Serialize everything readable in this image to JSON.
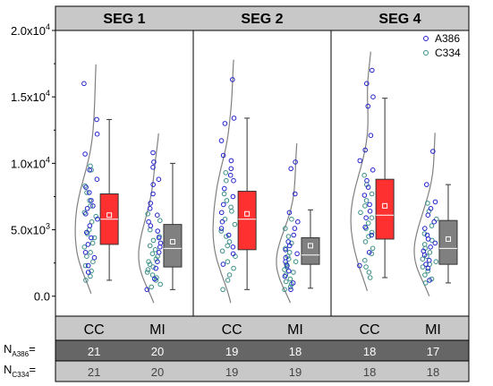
{
  "chart_data": {
    "type": "box",
    "y_axis": {
      "ylim": [
        -1500,
        20000
      ],
      "ticks": [
        {
          "value": 0,
          "label_base": "0.0",
          "label_exp": ""
        },
        {
          "value": 5000,
          "label_base": "5.0x10",
          "label_exp": "3"
        },
        {
          "value": 10000,
          "label_base": "1.0x10",
          "label_exp": "4"
        },
        {
          "value": 15000,
          "label_base": "1.5x10",
          "label_exp": "4"
        },
        {
          "value": 20000,
          "label_base": "2.0x10",
          "label_exp": "4"
        }
      ]
    },
    "legend": {
      "placement": "top-right",
      "entries": [
        {
          "name": "A386",
          "color": "#2222cc"
        },
        {
          "name": "C334",
          "color": "#3a8f86"
        }
      ]
    },
    "colors": {
      "cc_box": "#ff3030",
      "mi_box": "#808080",
      "header_bg": "#c8c8c8",
      "n_a_row": "#666666",
      "n_c_row": "#c8c8c8",
      "curve": "#808080",
      "a386": "#2222cc",
      "c334": "#3a8f86"
    },
    "panels": [
      {
        "title": "SEG 1",
        "groups": [
          {
            "category": "CC",
            "q1": 3900,
            "median": 5800,
            "q3": 7700,
            "mean": 6100,
            "whisker_low": 1200,
            "whisker_high": 13300,
            "a386": [
              16000,
              13300,
              12200,
              10700,
              9500,
              8800,
              8200,
              7800,
              7200,
              6800,
              6600,
              6200,
              5800,
              5300,
              4800,
              4400,
              3900,
              3300,
              2900,
              2300,
              1800
            ],
            "c334": [
              9800,
              9500,
              8300,
              7800,
              7200,
              6800,
              6300,
              6000,
              5600,
              5000,
              4700,
              4400,
              4000,
              3700,
              3300,
              3000,
              2600,
              2300,
              1900,
              1500,
              1200
            ]
          },
          {
            "category": "MI",
            "q1": 2200,
            "median": 3600,
            "q3": 5400,
            "mean": 4100,
            "whisker_low": 500,
            "whisker_high": 10000,
            "a386": [
              10800,
              10100,
              9700,
              8800,
              8400,
              7700,
              7000,
              6600,
              6100,
              5600,
              5300,
              4900,
              4400,
              4000,
              3700,
              3300,
              2600,
              2100,
              1300,
              500
            ],
            "c334": [
              6200,
              5700,
              5000,
              4500,
              4200,
              3800,
              3500,
              3200,
              3000,
              2800,
              2600,
              2400,
              2200,
              2000,
              1800,
              1600,
              1400,
              1200,
              900,
              700
            ]
          }
        ]
      },
      {
        "title": "SEG 2",
        "groups": [
          {
            "category": "CC",
            "q1": 3500,
            "median": 5800,
            "q3": 7900,
            "mean": 6200,
            "whisker_low": 500,
            "whisker_high": 13400,
            "a386": [
              16300,
              13400,
              13000,
              11700,
              10600,
              10200,
              9600,
              9100,
              8700,
              8100,
              7500,
              6900,
              6300,
              5600,
              5100,
              4600,
              3700,
              3200,
              2400
            ],
            "c334": [
              9300,
              8700,
              7700,
              7200,
              6700,
              6400,
              5800,
              5400,
              4900,
              4500,
              4100,
              3800,
              3400,
              3000,
              2600,
              2100,
              1600,
              1200,
              500
            ]
          },
          {
            "category": "MI",
            "q1": 2400,
            "median": 3100,
            "q3": 4400,
            "mean": 3800,
            "whisker_low": 600,
            "whisker_high": 6500,
            "a386": [
              10100,
              9600,
              7700,
              6300,
              5600,
              5100,
              4600,
              4100,
              3800,
              3500,
              3200,
              2900,
              2600,
              2300,
              1900,
              1500,
              1000,
              500
            ],
            "c334": [
              5800,
              5100,
              4500,
              4000,
              3600,
              3300,
              3000,
              2800,
              2600,
              2400,
              2200,
              2000,
              1800,
              1600,
              1300,
              1100,
              900,
              700,
              500
            ]
          }
        ]
      },
      {
        "title": "SEG 4",
        "groups": [
          {
            "category": "CC",
            "q1": 4300,
            "median": 6100,
            "q3": 8800,
            "mean": 6800,
            "whisker_low": 1400,
            "whisker_high": 14900,
            "a386": [
              17000,
              16000,
              15000,
              14300,
              12100,
              11000,
              10200,
              9500,
              8700,
              8200,
              7600,
              6900,
              6400,
              5900,
              5200,
              4600,
              3300,
              2300
            ],
            "c334": [
              9100,
              8400,
              7700,
              7200,
              6800,
              6300,
              5900,
              5500,
              5100,
              4800,
              4500,
              4100,
              3600,
              3200,
              2700,
              2200,
              1800,
              1400
            ]
          },
          {
            "category": "MI",
            "q1": 2400,
            "median": 3600,
            "q3": 5700,
            "mean": 4300,
            "whisker_low": 1000,
            "whisker_high": 8400,
            "a386": [
              10900,
              8400,
              7100,
              6600,
              6100,
              5600,
              5100,
              4600,
              4300,
              4000,
              3700,
              3400,
              3100,
              2700,
              2400,
              2100,
              1200
            ],
            "c334": [
              7000,
              6400,
              5800,
              5300,
              4700,
              4200,
              3900,
              3600,
              3300,
              3000,
              2800,
              2600,
              2400,
              2200,
              1900,
              1600,
              1300,
              1000
            ]
          }
        ]
      }
    ],
    "n_table": {
      "rows": [
        {
          "label_main": "N",
          "label_sub": "A386",
          "label_suffix": "=",
          "values": [
            21,
            20,
            19,
            18,
            18,
            17
          ]
        },
        {
          "label_main": "N",
          "label_sub": "C334",
          "label_suffix": "=",
          "values": [
            21,
            20,
            19,
            19,
            18,
            18
          ]
        }
      ]
    }
  }
}
